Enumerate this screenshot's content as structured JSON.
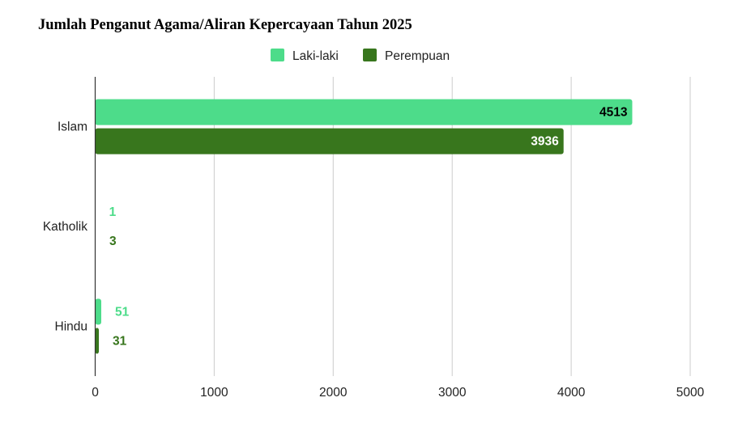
{
  "chart_data": {
    "type": "bar",
    "orientation": "horizontal",
    "title": "Jumlah Penganut Agama/Aliran Kepercayaan Tahun 2025",
    "categories": [
      "Islam",
      "Katholik",
      "Hindu"
    ],
    "series": [
      {
        "name": "Laki-laki",
        "values": [
          4513,
          1,
          51
        ],
        "color": "#4ddc8a"
      },
      {
        "name": "Perempuan",
        "values": [
          3936,
          3,
          31
        ],
        "color": "#38761d"
      }
    ],
    "xlim": [
      0,
      5000
    ],
    "x_ticks": [
      0,
      1000,
      2000,
      3000,
      4000,
      5000
    ],
    "grid": true,
    "legend_position": "top-center",
    "data_labels": true
  }
}
